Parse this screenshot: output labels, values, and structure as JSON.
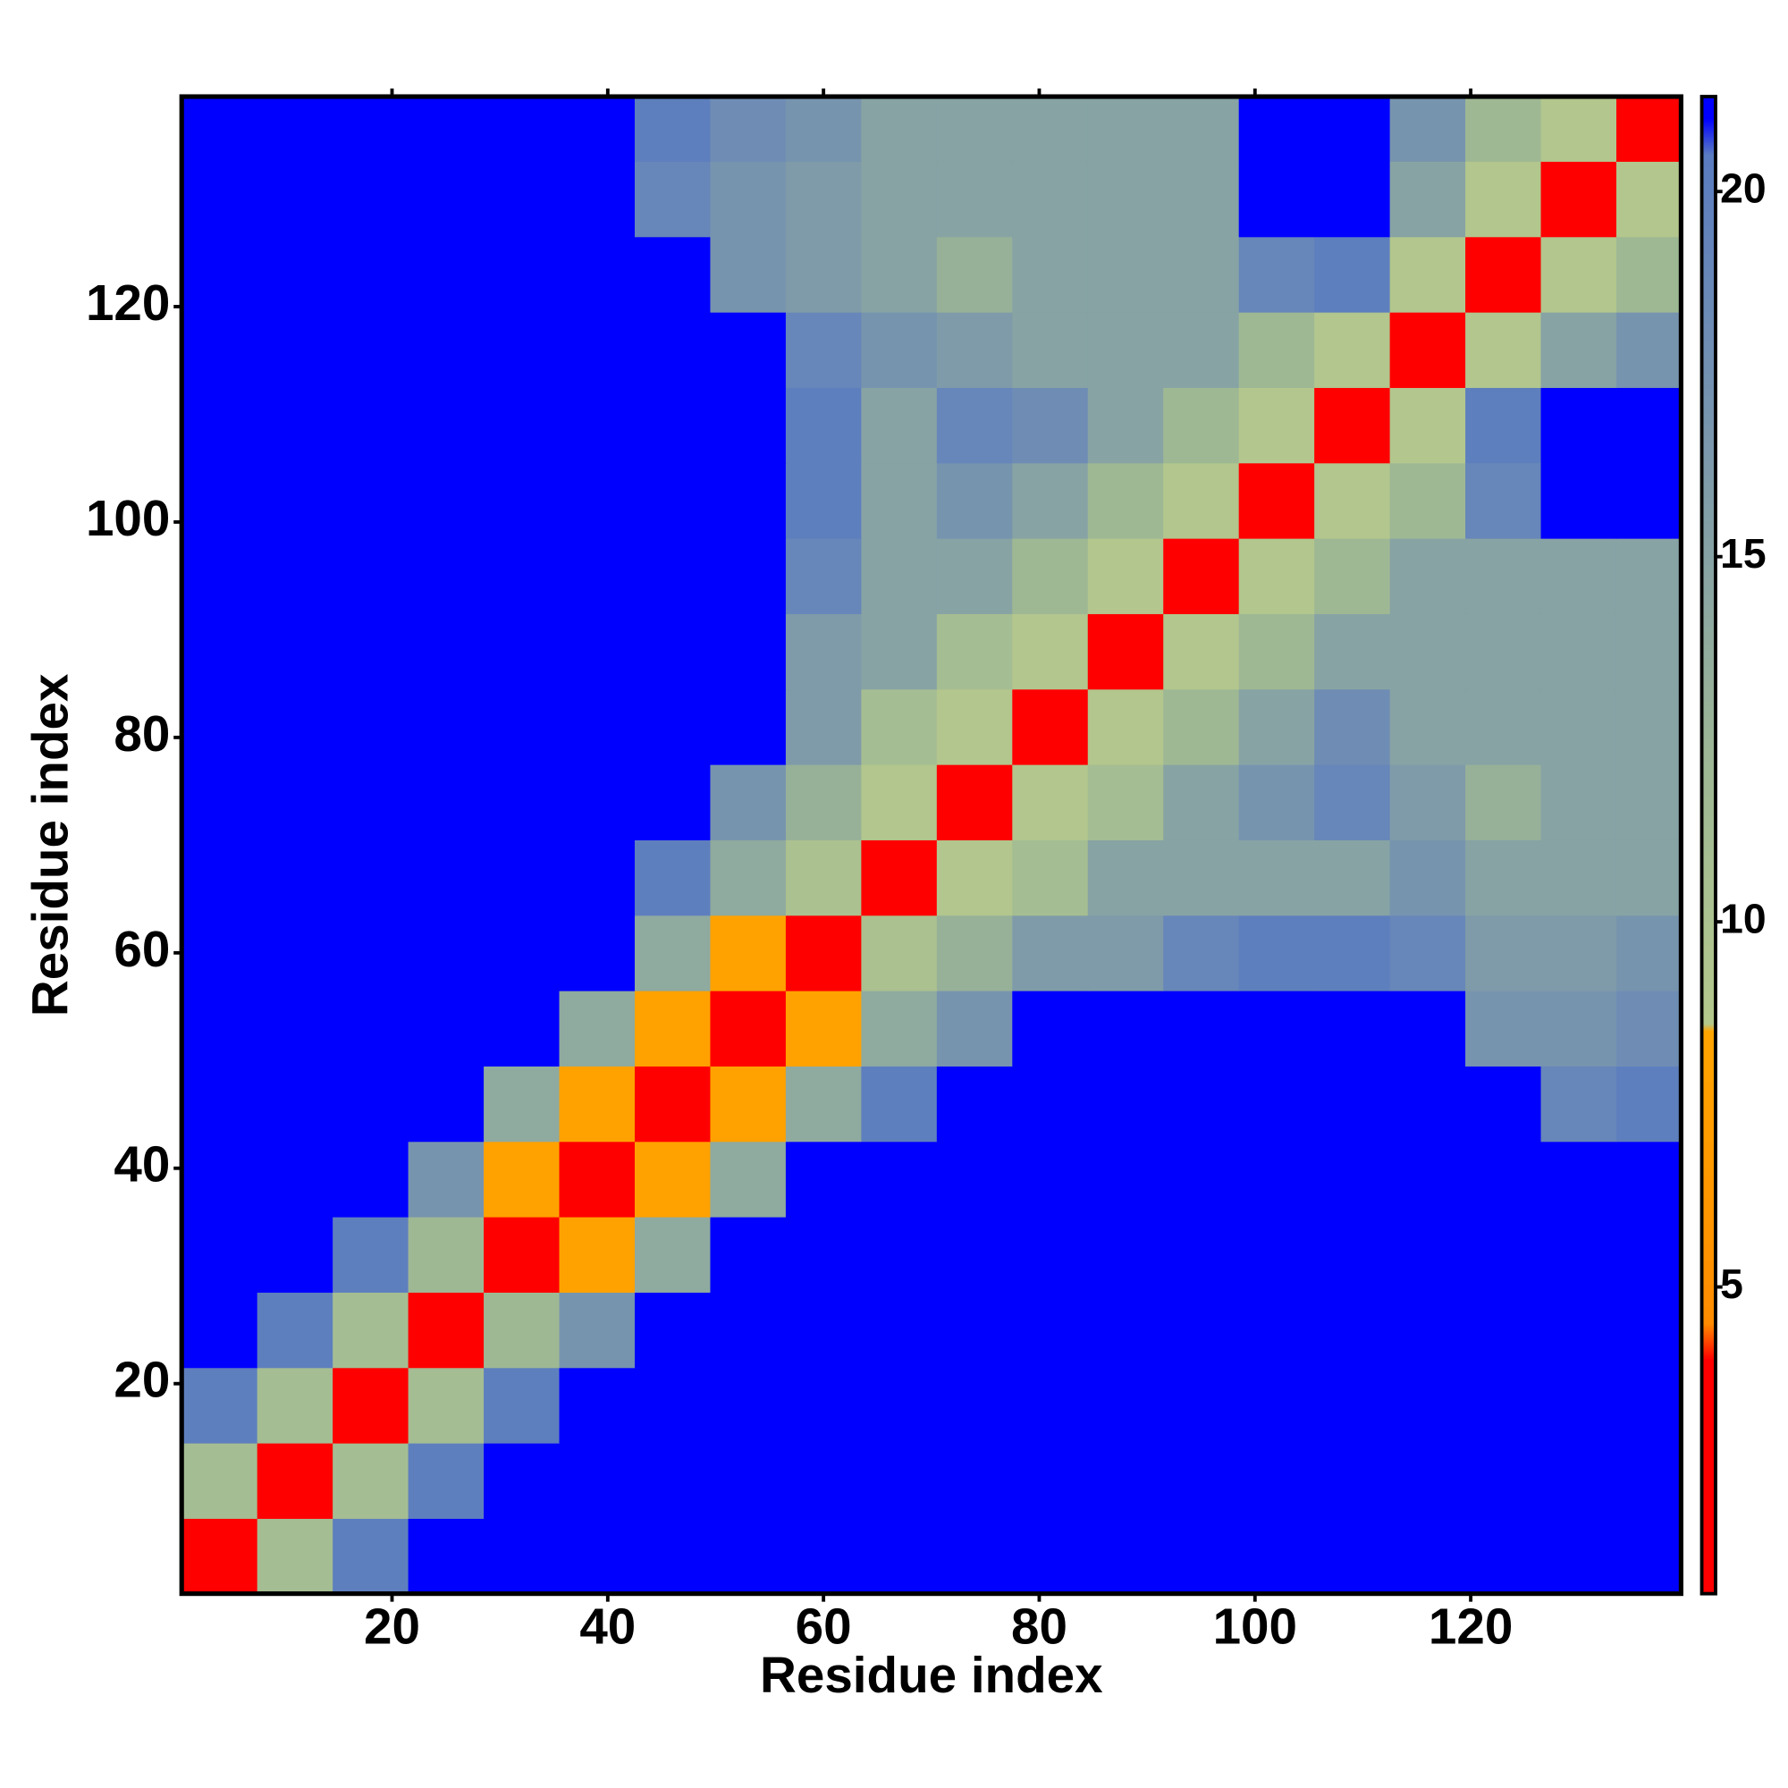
{
  "chart_data": {
    "type": "heatmap",
    "xlabel": "Residue index",
    "ylabel": "Residue index",
    "xlim": [
      0.5,
      139.5
    ],
    "ylim": [
      0.5,
      139.5
    ],
    "xticks": [
      20,
      40,
      60,
      80,
      100,
      120
    ],
    "yticks": [
      20,
      40,
      60,
      80,
      100,
      120
    ],
    "xbins": [
      0.5,
      7.5,
      14.5,
      21.5,
      28.5,
      35.5,
      42.5,
      49.5,
      56.5,
      63.5,
      70.5,
      77.5,
      84.5,
      91.5,
      98.5,
      105.5,
      112.5,
      119.5,
      126.5,
      133.5,
      139.5
    ],
    "ybins": [
      0.5,
      7.5,
      14.5,
      21.5,
      28.5,
      35.5,
      42.5,
      49.5,
      56.5,
      63.5,
      70.5,
      77.5,
      84.5,
      91.5,
      98.5,
      105.5,
      112.5,
      119.5,
      126.5,
      133.5,
      139.5
    ],
    "values": [
      [
        3,
        11,
        20,
        21,
        21,
        21,
        21,
        21,
        21,
        21,
        21,
        21,
        21,
        21,
        21,
        21,
        21,
        21,
        21,
        21
      ],
      [
        11,
        3,
        11,
        20,
        21,
        21,
        21,
        21,
        21,
        21,
        21,
        21,
        21,
        21,
        21,
        21,
        21,
        21,
        21,
        21
      ],
      [
        20,
        11,
        3,
        11,
        20,
        21,
        21,
        21,
        21,
        21,
        21,
        21,
        21,
        21,
        21,
        21,
        21,
        21,
        21,
        21
      ],
      [
        21,
        20,
        11,
        3,
        12,
        17,
        21,
        21,
        21,
        21,
        21,
        21,
        21,
        21,
        21,
        21,
        21,
        21,
        21,
        21
      ],
      [
        21,
        21,
        20,
        12,
        3,
        8,
        14,
        21,
        21,
        21,
        21,
        21,
        21,
        21,
        21,
        21,
        21,
        21,
        21,
        21
      ],
      [
        21,
        21,
        21,
        17,
        8,
        3,
        8,
        14,
        21,
        21,
        21,
        21,
        21,
        21,
        21,
        21,
        21,
        21,
        21,
        21
      ],
      [
        21,
        21,
        21,
        21,
        14,
        8,
        3,
        8,
        14,
        20,
        21,
        21,
        21,
        21,
        21,
        21,
        21,
        21,
        19,
        20
      ],
      [
        21,
        21,
        21,
        21,
        21,
        14,
        8,
        3,
        8,
        14,
        17,
        21,
        21,
        21,
        21,
        21,
        21,
        17,
        17,
        18
      ],
      [
        21,
        21,
        21,
        21,
        21,
        21,
        14,
        8,
        3,
        10,
        13,
        16,
        16,
        19,
        20,
        20,
        19,
        16,
        16,
        17
      ],
      [
        21,
        21,
        21,
        21,
        21,
        21,
        20,
        14,
        10,
        3,
        9,
        11,
        15,
        15,
        15,
        15,
        17,
        15,
        15,
        15
      ],
      [
        21,
        21,
        21,
        21,
        21,
        21,
        21,
        17,
        13,
        9,
        3,
        9,
        11,
        15,
        17,
        19,
        16,
        13,
        15,
        15
      ],
      [
        21,
        21,
        21,
        21,
        21,
        21,
        21,
        21,
        16,
        11,
        9,
        3,
        9,
        12,
        15,
        18,
        15,
        15,
        15,
        15
      ],
      [
        21,
        21,
        21,
        21,
        21,
        21,
        21,
        21,
        16,
        15,
        11,
        9,
        3,
        9,
        12,
        15,
        15,
        15,
        15,
        15
      ],
      [
        21,
        21,
        21,
        21,
        21,
        21,
        21,
        21,
        19,
        15,
        15,
        12,
        9,
        3,
        9,
        12,
        15,
        15,
        15,
        15
      ],
      [
        21,
        21,
        21,
        21,
        21,
        21,
        21,
        21,
        20,
        15,
        17,
        15,
        12,
        9,
        3,
        9,
        12,
        19,
        21,
        21
      ],
      [
        21,
        21,
        21,
        21,
        21,
        21,
        21,
        21,
        20,
        15,
        19,
        18,
        15,
        12,
        9,
        3,
        9,
        20,
        21,
        21
      ],
      [
        21,
        21,
        21,
        21,
        21,
        21,
        21,
        21,
        19,
        17,
        16,
        15,
        15,
        15,
        12,
        9,
        3,
        9,
        15,
        17
      ],
      [
        21,
        21,
        21,
        21,
        21,
        21,
        21,
        17,
        16,
        15,
        13,
        15,
        15,
        15,
        19,
        20,
        9,
        3,
        9,
        12
      ],
      [
        21,
        21,
        21,
        21,
        21,
        21,
        19,
        17,
        16,
        15,
        15,
        15,
        15,
        15,
        21,
        21,
        15,
        9,
        3,
        9
      ],
      [
        21,
        21,
        21,
        21,
        21,
        21,
        20,
        18,
        17,
        15,
        15,
        15,
        15,
        15,
        21,
        21,
        17,
        12,
        9,
        3
      ]
    ],
    "clim": [
      0.8,
      21.3
    ],
    "cticks": [
      5,
      10,
      15,
      20
    ],
    "colorscale": [
      [
        0.8,
        "#ff0000"
      ],
      [
        4,
        "#ff0000"
      ],
      [
        4.5,
        "#ff8c00"
      ],
      [
        8.5,
        "#ffa500"
      ],
      [
        8.6,
        "#b4c88c"
      ],
      [
        12,
        "#9fb894"
      ],
      [
        18,
        "#6f8db4"
      ],
      [
        20.5,
        "#5a7cc0"
      ],
      [
        21,
        "#0000ff"
      ]
    ]
  }
}
